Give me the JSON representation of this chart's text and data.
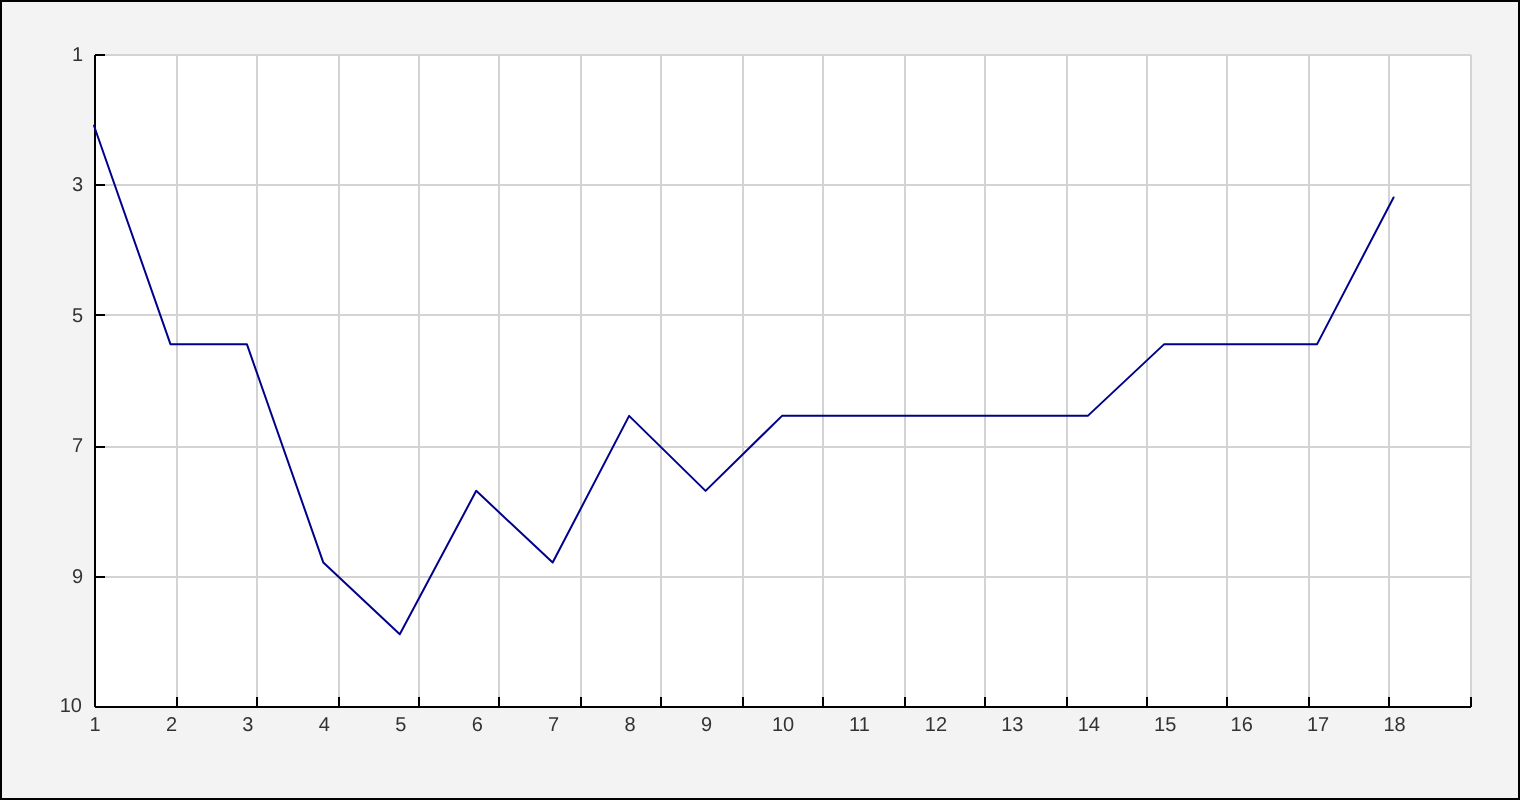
{
  "chart_data": {
    "type": "line",
    "x": [
      1,
      2,
      3,
      4,
      5,
      6,
      7,
      8,
      9,
      10,
      11,
      12,
      13,
      14,
      15,
      16,
      17,
      18
    ],
    "values": [
      2.1,
      5.45,
      5.45,
      8.8,
      9.9,
      7.7,
      8.8,
      6.55,
      7.7,
      6.55,
      6.55,
      6.55,
      6.55,
      6.55,
      5.45,
      5.45,
      5.45,
      3.2
    ],
    "color": "#00008b",
    "xlim": [
      1,
      19
    ],
    "xticks": [
      1,
      {
        "value": 2.06,
        "label": null
      },
      2,
      {
        "value": 3.12,
        "label": null
      },
      3,
      {
        "value": 4.18,
        "label": null
      },
      4,
      {
        "value": 5.24,
        "label": null
      },
      5,
      {
        "value": 6.29,
        "label": null
      },
      6,
      {
        "value": 7.35,
        "label": null
      },
      7,
      {
        "value": 8.41,
        "label": null
      },
      8,
      {
        "value": 9.47,
        "label": null
      },
      9,
      {
        "value": 10.53,
        "label": null
      },
      10,
      {
        "value": 11.59,
        "label": null
      },
      11,
      {
        "value": 12.65,
        "label": null
      },
      12,
      {
        "value": 13.71,
        "label": null
      },
      13,
      {
        "value": 14.76,
        "label": null
      },
      14,
      {
        "value": 15.82,
        "label": null
      },
      15,
      {
        "value": 16.88,
        "label": null
      },
      16,
      {
        "value": 17.94,
        "label": null
      },
      17,
      18,
      {
        "value": 19,
        "label": null
      }
    ],
    "ylim": [
      11,
      1
    ],
    "yticks": [
      1,
      3,
      5,
      7,
      9
    ],
    "annotations": [
      "10"
    ],
    "grid": true
  }
}
